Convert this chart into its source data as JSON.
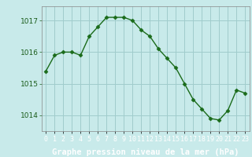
{
  "hours": [
    0,
    1,
    2,
    3,
    4,
    5,
    6,
    7,
    8,
    9,
    10,
    11,
    12,
    13,
    14,
    15,
    16,
    17,
    18,
    19,
    20,
    21,
    22,
    23
  ],
  "pressure": [
    1015.4,
    1015.9,
    1016.0,
    1016.0,
    1015.9,
    1016.5,
    1016.8,
    1017.1,
    1017.1,
    1017.1,
    1017.0,
    1016.7,
    1016.5,
    1016.1,
    1015.8,
    1015.5,
    1015.0,
    1014.5,
    1014.2,
    1013.9,
    1013.85,
    1014.15,
    1014.8,
    1014.7
  ],
  "line_color": "#1a6b1a",
  "marker": "D",
  "marker_size": 2.5,
  "bg_color": "#c8eaea",
  "plot_bg_color": "#c8eaea",
  "grid_color": "#a0cccc",
  "bottom_bar_color": "#2d7a2d",
  "bottom_text_color": "#ffffff",
  "ylabel_ticks": [
    1014,
    1015,
    1016,
    1017
  ],
  "xlabel_label": "Graphe pression niveau de la mer (hPa)",
  "ylim": [
    1013.5,
    1017.45
  ],
  "xlim": [
    -0.5,
    23.5
  ],
  "tick_fontsize": 6.5,
  "xlabel_fontsize": 7.5,
  "label_color": "#1a5c1a"
}
